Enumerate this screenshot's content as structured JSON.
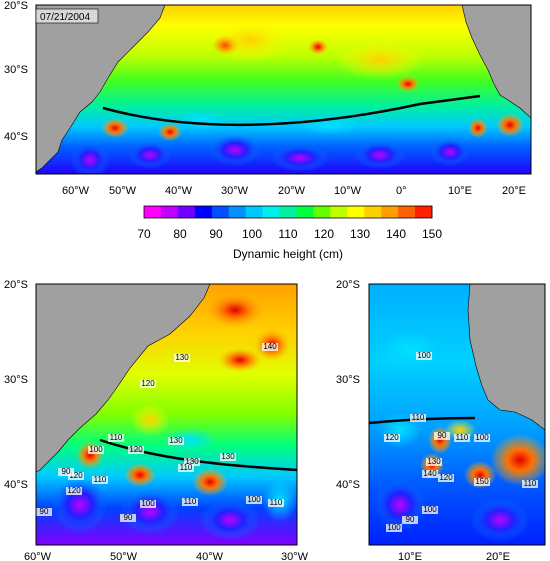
{
  "date_label": "07/21/2004",
  "colorbar": {
    "title": "Dynamic height (cm)",
    "ticks": [
      "70",
      "80",
      "90",
      "100",
      "110",
      "120",
      "130",
      "140",
      "150"
    ],
    "colors": [
      "#ff00ff",
      "#c000ff",
      "#7000ff",
      "#0000ff",
      "#0050ff",
      "#0090ff",
      "#00c8ff",
      "#00f0f0",
      "#00f0a0",
      "#00ff40",
      "#60ff00",
      "#c0ff00",
      "#ffff00",
      "#ffd000",
      "#ffa000",
      "#ff6000",
      "#ff2000"
    ]
  },
  "top_map": {
    "lat_labels": [
      "20°S",
      "30°S",
      "40°S"
    ],
    "lon_labels": [
      "60°W",
      "50°W",
      "40°W",
      "30°W",
      "20°W",
      "10°W",
      "0°",
      "10°E",
      "20°E"
    ]
  },
  "left_map": {
    "lat_labels": [
      "20°S",
      "30°S",
      "40°S"
    ],
    "lon_labels": [
      "60°W",
      "50°W",
      "40°W",
      "30°W"
    ],
    "contour_labels": [
      "130",
      "140",
      "120",
      "130",
      "110",
      "130",
      "120",
      "100",
      "130",
      "110",
      "120",
      "110",
      "120",
      "90",
      "100",
      "90",
      "100",
      "110",
      "110",
      "90"
    ]
  },
  "right_map": {
    "lat_labels": [
      "20°S",
      "30°S",
      "40°S"
    ],
    "lon_labels": [
      "10°E",
      "20°E"
    ],
    "contour_labels": [
      "100",
      "110",
      "120",
      "90",
      "110",
      "100",
      "130",
      "140",
      "120",
      "150",
      "100",
      "90",
      "100",
      "110"
    ]
  },
  "colors": {
    "land": "#a0a0a0",
    "frame": "#000000"
  }
}
